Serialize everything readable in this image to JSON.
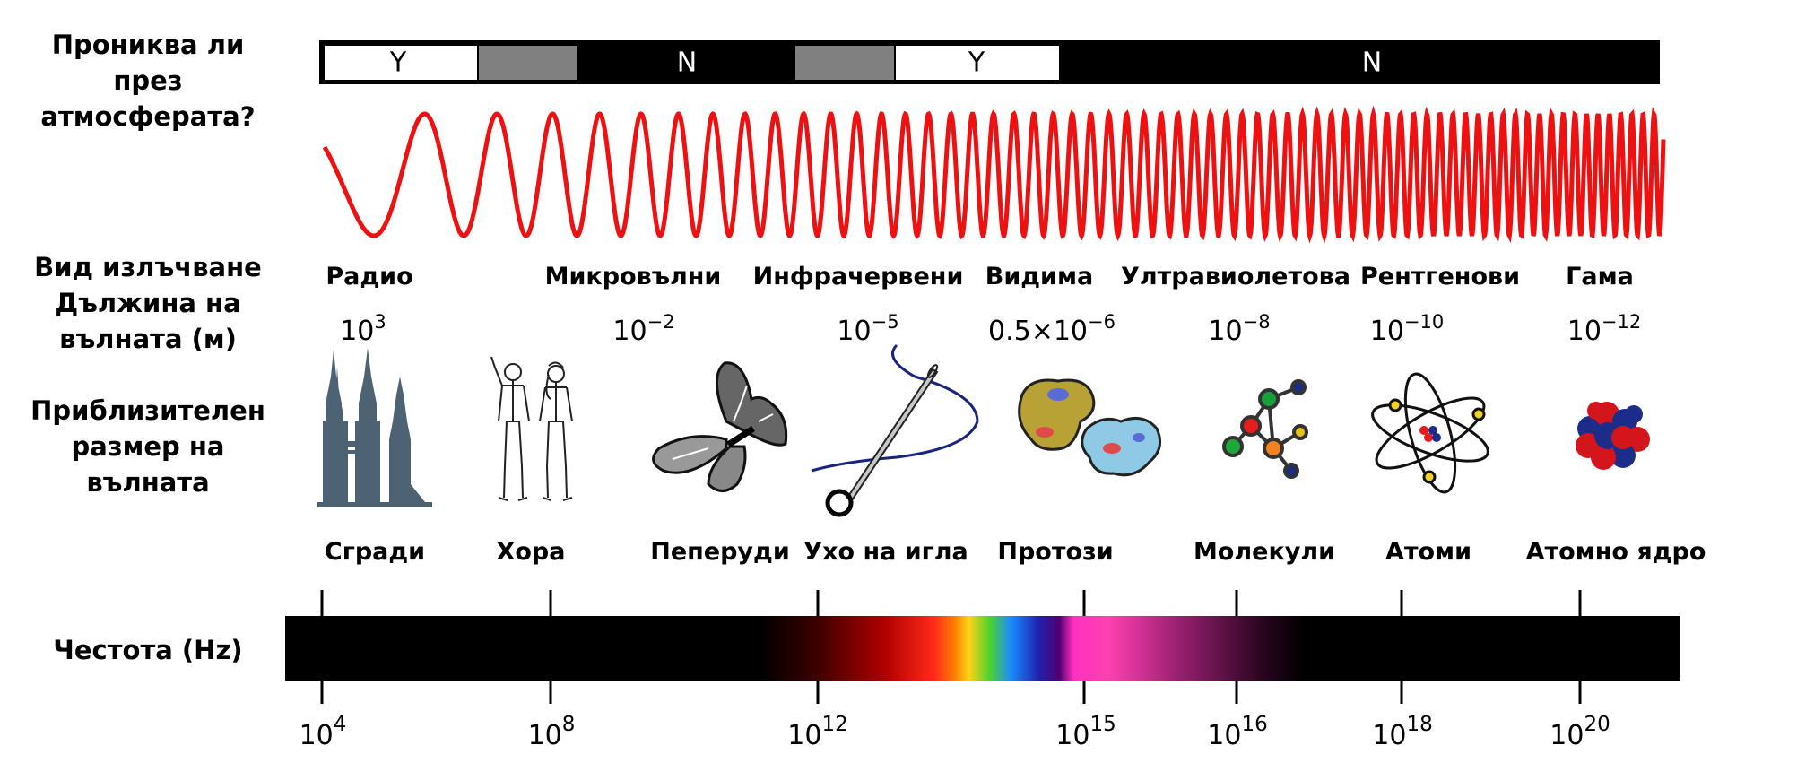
{
  "left_labels": {
    "penetrates": [
      "Прониква ли",
      "през",
      "атмосферата?"
    ],
    "radiation_type": "Вид излъчване",
    "wavelength": [
      "Дължина на",
      "вълната (м)"
    ],
    "approx_size": [
      "Приблизителен",
      "размер на",
      "вълната"
    ],
    "frequency": "Честота (Hz)"
  },
  "penetration_bar": {
    "segments": [
      {
        "label": "Y",
        "fill": "#ffffff"
      },
      {
        "label": "",
        "fill": "#808080"
      },
      {
        "label": "N",
        "fill": "#000000"
      },
      {
        "label": "",
        "fill": "#808080"
      },
      {
        "label": "Y",
        "fill": "#ffffff"
      },
      {
        "label": "N",
        "fill": "#000000"
      }
    ]
  },
  "radiation_types": [
    "Радио",
    "Микровълни",
    "Инфрачервени",
    "Видима",
    "Ултравиолетова",
    "Рентгенови",
    "Гама"
  ],
  "wavelengths": [
    {
      "base": "10",
      "exp": "3"
    },
    {
      "base": "10",
      "exp": "−2"
    },
    {
      "base": "10",
      "exp": "−5"
    },
    {
      "base": "0.5×10",
      "exp": "−6"
    },
    {
      "base": "10",
      "exp": "−8"
    },
    {
      "base": "10",
      "exp": "−10"
    },
    {
      "base": "10",
      "exp": "−12"
    }
  ],
  "size_objects": [
    "Сгради",
    "Хора",
    "Пеперуди",
    "Ухо на игла",
    "Протози",
    "Молекули",
    "Атоми",
    "Атомно ядро"
  ],
  "frequencies": [
    {
      "base": "10",
      "exp": "4"
    },
    {
      "base": "10",
      "exp": "8"
    },
    {
      "base": "10",
      "exp": "12"
    },
    {
      "base": "10",
      "exp": "15"
    },
    {
      "base": "10",
      "exp": "16"
    },
    {
      "base": "10",
      "exp": "18"
    },
    {
      "base": "10",
      "exp": "20"
    }
  ],
  "colors": {
    "wave": "#ee1111",
    "building": "#4d6272",
    "needle_thread": "#1a237e"
  },
  "icons": [
    "buildings-icon",
    "humans-icon",
    "butterfly-icon",
    "needle-icon",
    "protozoa-icon",
    "molecule-icon",
    "atom-icon",
    "nucleus-icon"
  ]
}
